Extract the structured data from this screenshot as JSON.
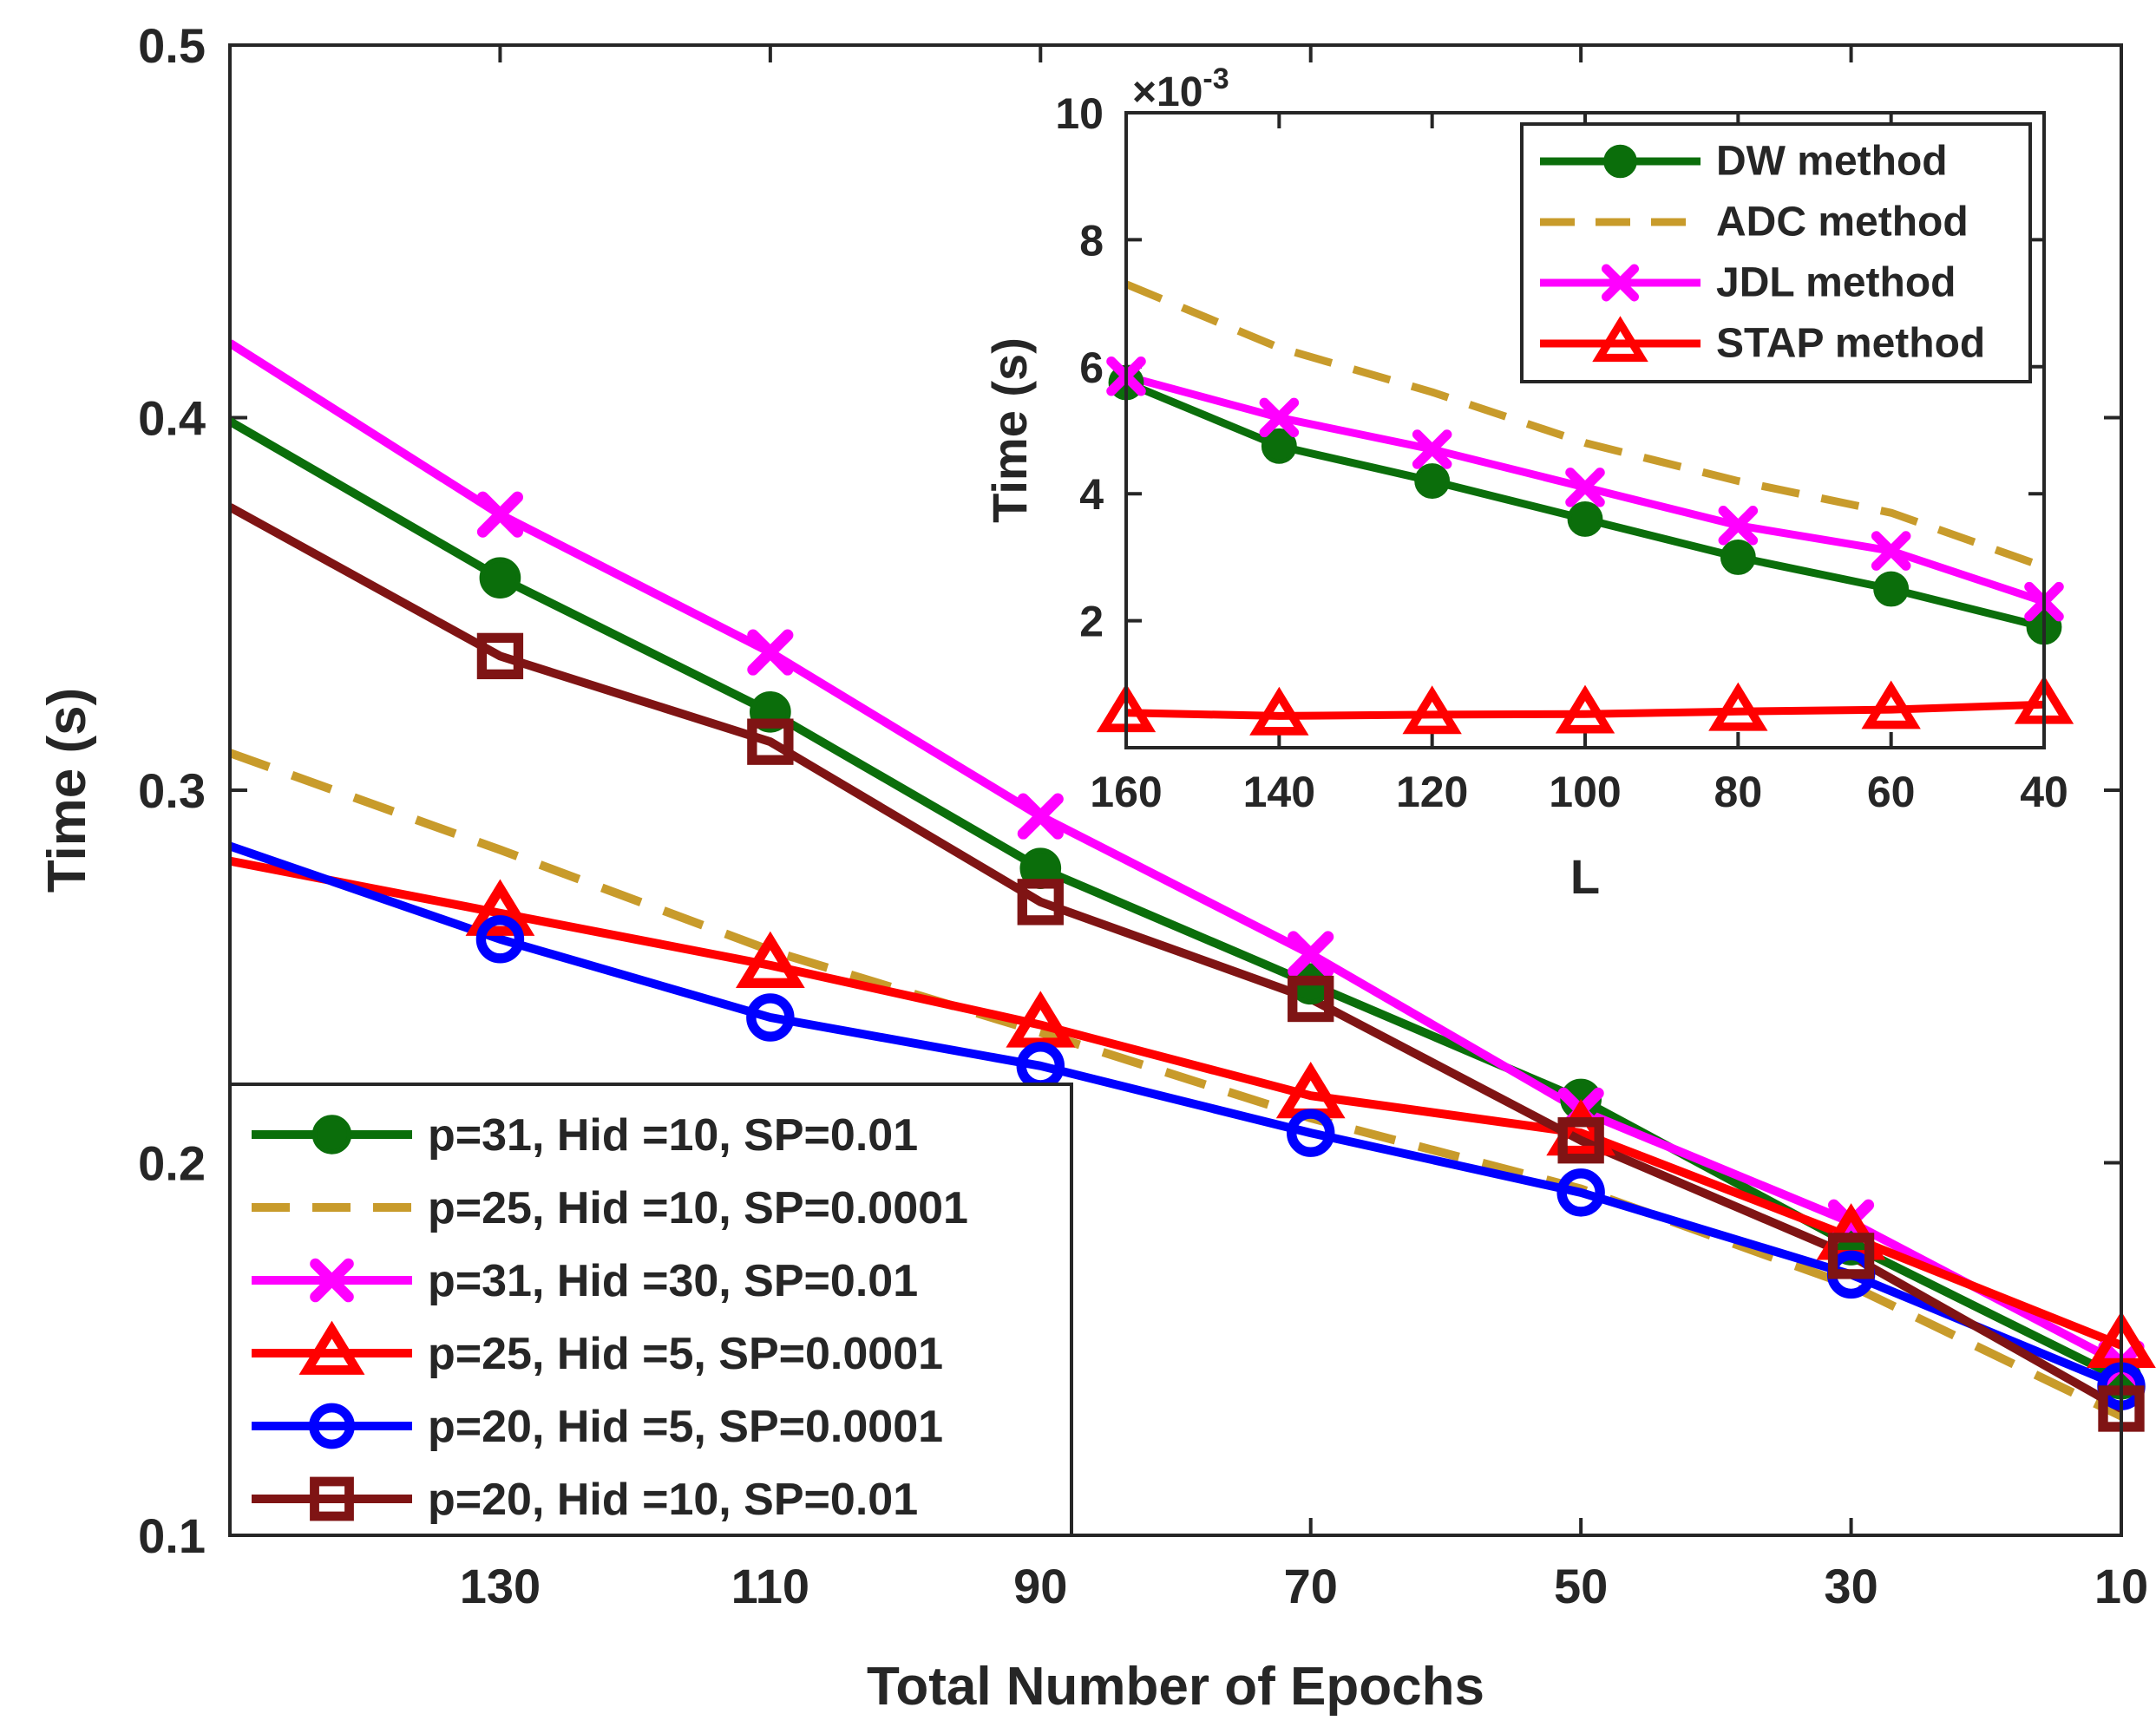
{
  "chart_data": [
    {
      "id": "main",
      "type": "line",
      "title": "",
      "xlabel": "Total Number of Epochs",
      "ylabel": "Time (s)",
      "x_reversed": true,
      "xlim": [
        150,
        10
      ],
      "ylim": [
        0.1,
        0.5
      ],
      "xticks": [
        130,
        110,
        90,
        70,
        50,
        30,
        10
      ],
      "xtick_labels": [
        "130",
        "110",
        "90",
        "70",
        "50",
        "30",
        "10"
      ],
      "yticks": [
        0.1,
        0.2,
        0.3,
        0.4,
        0.5
      ],
      "ytick_labels": [
        "0.1",
        "0.2",
        "0.3",
        "0.4",
        "0.5"
      ],
      "legend_position": "bottom-left",
      "series": [
        {
          "name": "p=31, Hid =10, SP=0.01",
          "color": "#0b6e0b",
          "marker": "filled-circle",
          "dashed": false,
          "x": [
            150,
            130,
            110,
            90,
            70,
            50,
            30,
            10
          ],
          "y": [
            0.399,
            0.357,
            0.321,
            0.279,
            0.248,
            0.217,
            0.178,
            0.142
          ]
        },
        {
          "name": "p=25, Hid =10, SP=0.0001",
          "color": "#c89b2b",
          "marker": "none",
          "dashed": true,
          "x": [
            150,
            130,
            110,
            90,
            70,
            50,
            30,
            10
          ],
          "y": [
            0.31,
            0.284,
            0.257,
            0.235,
            0.212,
            0.193,
            0.167,
            0.132
          ]
        },
        {
          "name": "p=31, Hid =30, SP=0.01",
          "color": "#ff00ff",
          "marker": "x-cross",
          "dashed": false,
          "x": [
            150,
            130,
            110,
            90,
            70,
            50,
            30,
            10
          ],
          "y": [
            0.42,
            0.374,
            0.337,
            0.293,
            0.256,
            0.214,
            0.184,
            0.146
          ]
        },
        {
          "name": "p=25, Hid =5, SP=0.0001",
          "color": "#ff0000",
          "marker": "triangle",
          "dashed": false,
          "x": [
            150,
            130,
            110,
            90,
            70,
            50,
            30,
            10
          ],
          "y": [
            0.281,
            0.267,
            0.253,
            0.237,
            0.218,
            0.208,
            0.18,
            0.151
          ]
        },
        {
          "name": "p=20, Hid =5, SP=0.0001",
          "color": "#0000ff",
          "marker": "open-circle",
          "dashed": false,
          "x": [
            150,
            130,
            110,
            90,
            70,
            50,
            30,
            10
          ],
          "y": [
            0.285,
            0.26,
            0.239,
            0.226,
            0.208,
            0.192,
            0.17,
            0.14
          ]
        },
        {
          "name": "p=20, Hid =10, SP=0.01",
          "color": "#7f1414",
          "marker": "square",
          "dashed": false,
          "x": [
            150,
            130,
            110,
            90,
            70,
            50,
            30,
            10
          ],
          "y": [
            0.376,
            0.336,
            0.313,
            0.27,
            0.244,
            0.206,
            0.175,
            0.134
          ]
        }
      ]
    },
    {
      "id": "inset",
      "type": "line",
      "title": "",
      "xlabel": "L",
      "ylabel": "Time (s)",
      "y_exponent_base": "×10",
      "y_exponent_power": "-3",
      "x_reversed": true,
      "xlim": [
        160,
        40
      ],
      "ylim": [
        0,
        10
      ],
      "xticks": [
        160,
        140,
        120,
        100,
        80,
        60,
        40
      ],
      "xtick_labels": [
        "160",
        "140",
        "120",
        "100",
        "80",
        "60",
        "40"
      ],
      "yticks": [
        2,
        4,
        6,
        8,
        10
      ],
      "ytick_labels": [
        "2",
        "4",
        "6",
        "8",
        "10"
      ],
      "legend_position": "top-right",
      "series": [
        {
          "name": "DW method",
          "color": "#0b6e0b",
          "marker": "filled-circle",
          "dashed": false,
          "x": [
            160,
            140,
            120,
            100,
            80,
            60,
            40
          ],
          "y": [
            5.75,
            4.75,
            4.2,
            3.6,
            3.0,
            2.5,
            1.9
          ]
        },
        {
          "name": "ADC method",
          "color": "#c89b2b",
          "marker": "none",
          "dashed": true,
          "x": [
            160,
            140,
            120,
            100,
            80,
            60,
            40
          ],
          "y": [
            7.3,
            6.3,
            5.6,
            4.8,
            4.2,
            3.7,
            2.85
          ]
        },
        {
          "name": "JDL method",
          "color": "#ff00ff",
          "marker": "x-cross",
          "dashed": false,
          "x": [
            160,
            140,
            120,
            100,
            80,
            60,
            40
          ],
          "y": [
            5.85,
            5.2,
            4.7,
            4.1,
            3.5,
            3.1,
            2.3
          ]
        },
        {
          "name": "STAP method",
          "color": "#ff0000",
          "marker": "triangle",
          "dashed": false,
          "x": [
            160,
            140,
            120,
            100,
            80,
            60,
            40
          ],
          "y": [
            0.55,
            0.5,
            0.52,
            0.53,
            0.57,
            0.6,
            0.68
          ]
        }
      ]
    }
  ]
}
